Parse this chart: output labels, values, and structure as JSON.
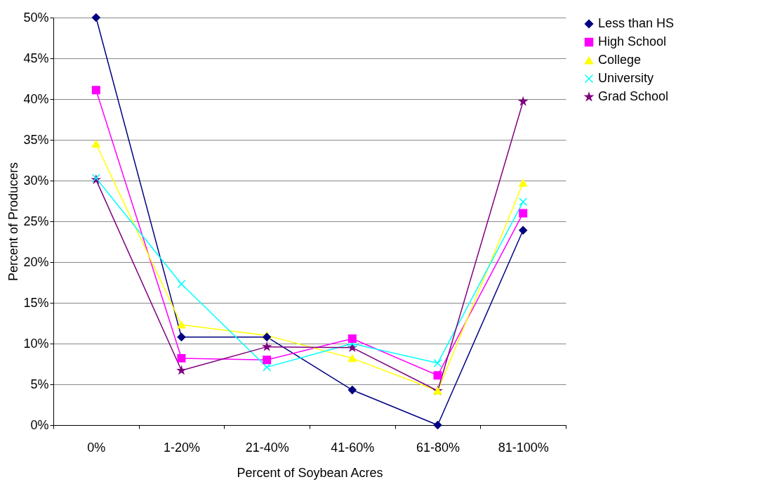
{
  "chart_data": {
    "type": "line",
    "xlabel": "Percent of Soybean Acres",
    "ylabel": "Percent of Producers",
    "categories": [
      "0%",
      "1-20%",
      "21-40%",
      "41-60%",
      "61-80%",
      "81-100%"
    ],
    "ylim": [
      0,
      50
    ],
    "yticks": [
      {
        "value": 0,
        "label": "0%"
      },
      {
        "value": 5,
        "label": "5%"
      },
      {
        "value": 10,
        "label": "10%"
      },
      {
        "value": 15,
        "label": "15%"
      },
      {
        "value": 20,
        "label": "20%"
      },
      {
        "value": 25,
        "label": "25%"
      },
      {
        "value": 30,
        "label": "30%"
      },
      {
        "value": 35,
        "label": "35%"
      },
      {
        "value": 40,
        "label": "40%"
      },
      {
        "value": 45,
        "label": "45%"
      },
      {
        "value": 50,
        "label": "50%"
      }
    ],
    "grid": "y",
    "legend": "right",
    "line_style": "solid",
    "series": [
      {
        "name": "Less than HS",
        "color": "#000080",
        "marker": "diamond",
        "values": [
          50,
          10.8,
          10.8,
          4.3,
          0,
          23.9
        ]
      },
      {
        "name": "High School",
        "color": "#ff00ff",
        "marker": "square",
        "values": [
          41.1,
          8.2,
          8.0,
          10.6,
          6.1,
          26
        ]
      },
      {
        "name": "College",
        "color": "#ffff00",
        "marker": "triangle",
        "values": [
          34.5,
          12.3,
          11.0,
          8.2,
          4.2,
          29.7
        ]
      },
      {
        "name": "University",
        "color": "#00ffff",
        "marker": "cross",
        "values": [
          30.3,
          17.3,
          7.1,
          10.0,
          7.6,
          27.4
        ]
      },
      {
        "name": "Grad School",
        "color": "#800080",
        "marker": "star",
        "values": [
          30.1,
          6.7,
          9.6,
          9.5,
          4.2,
          39.7
        ]
      }
    ]
  }
}
